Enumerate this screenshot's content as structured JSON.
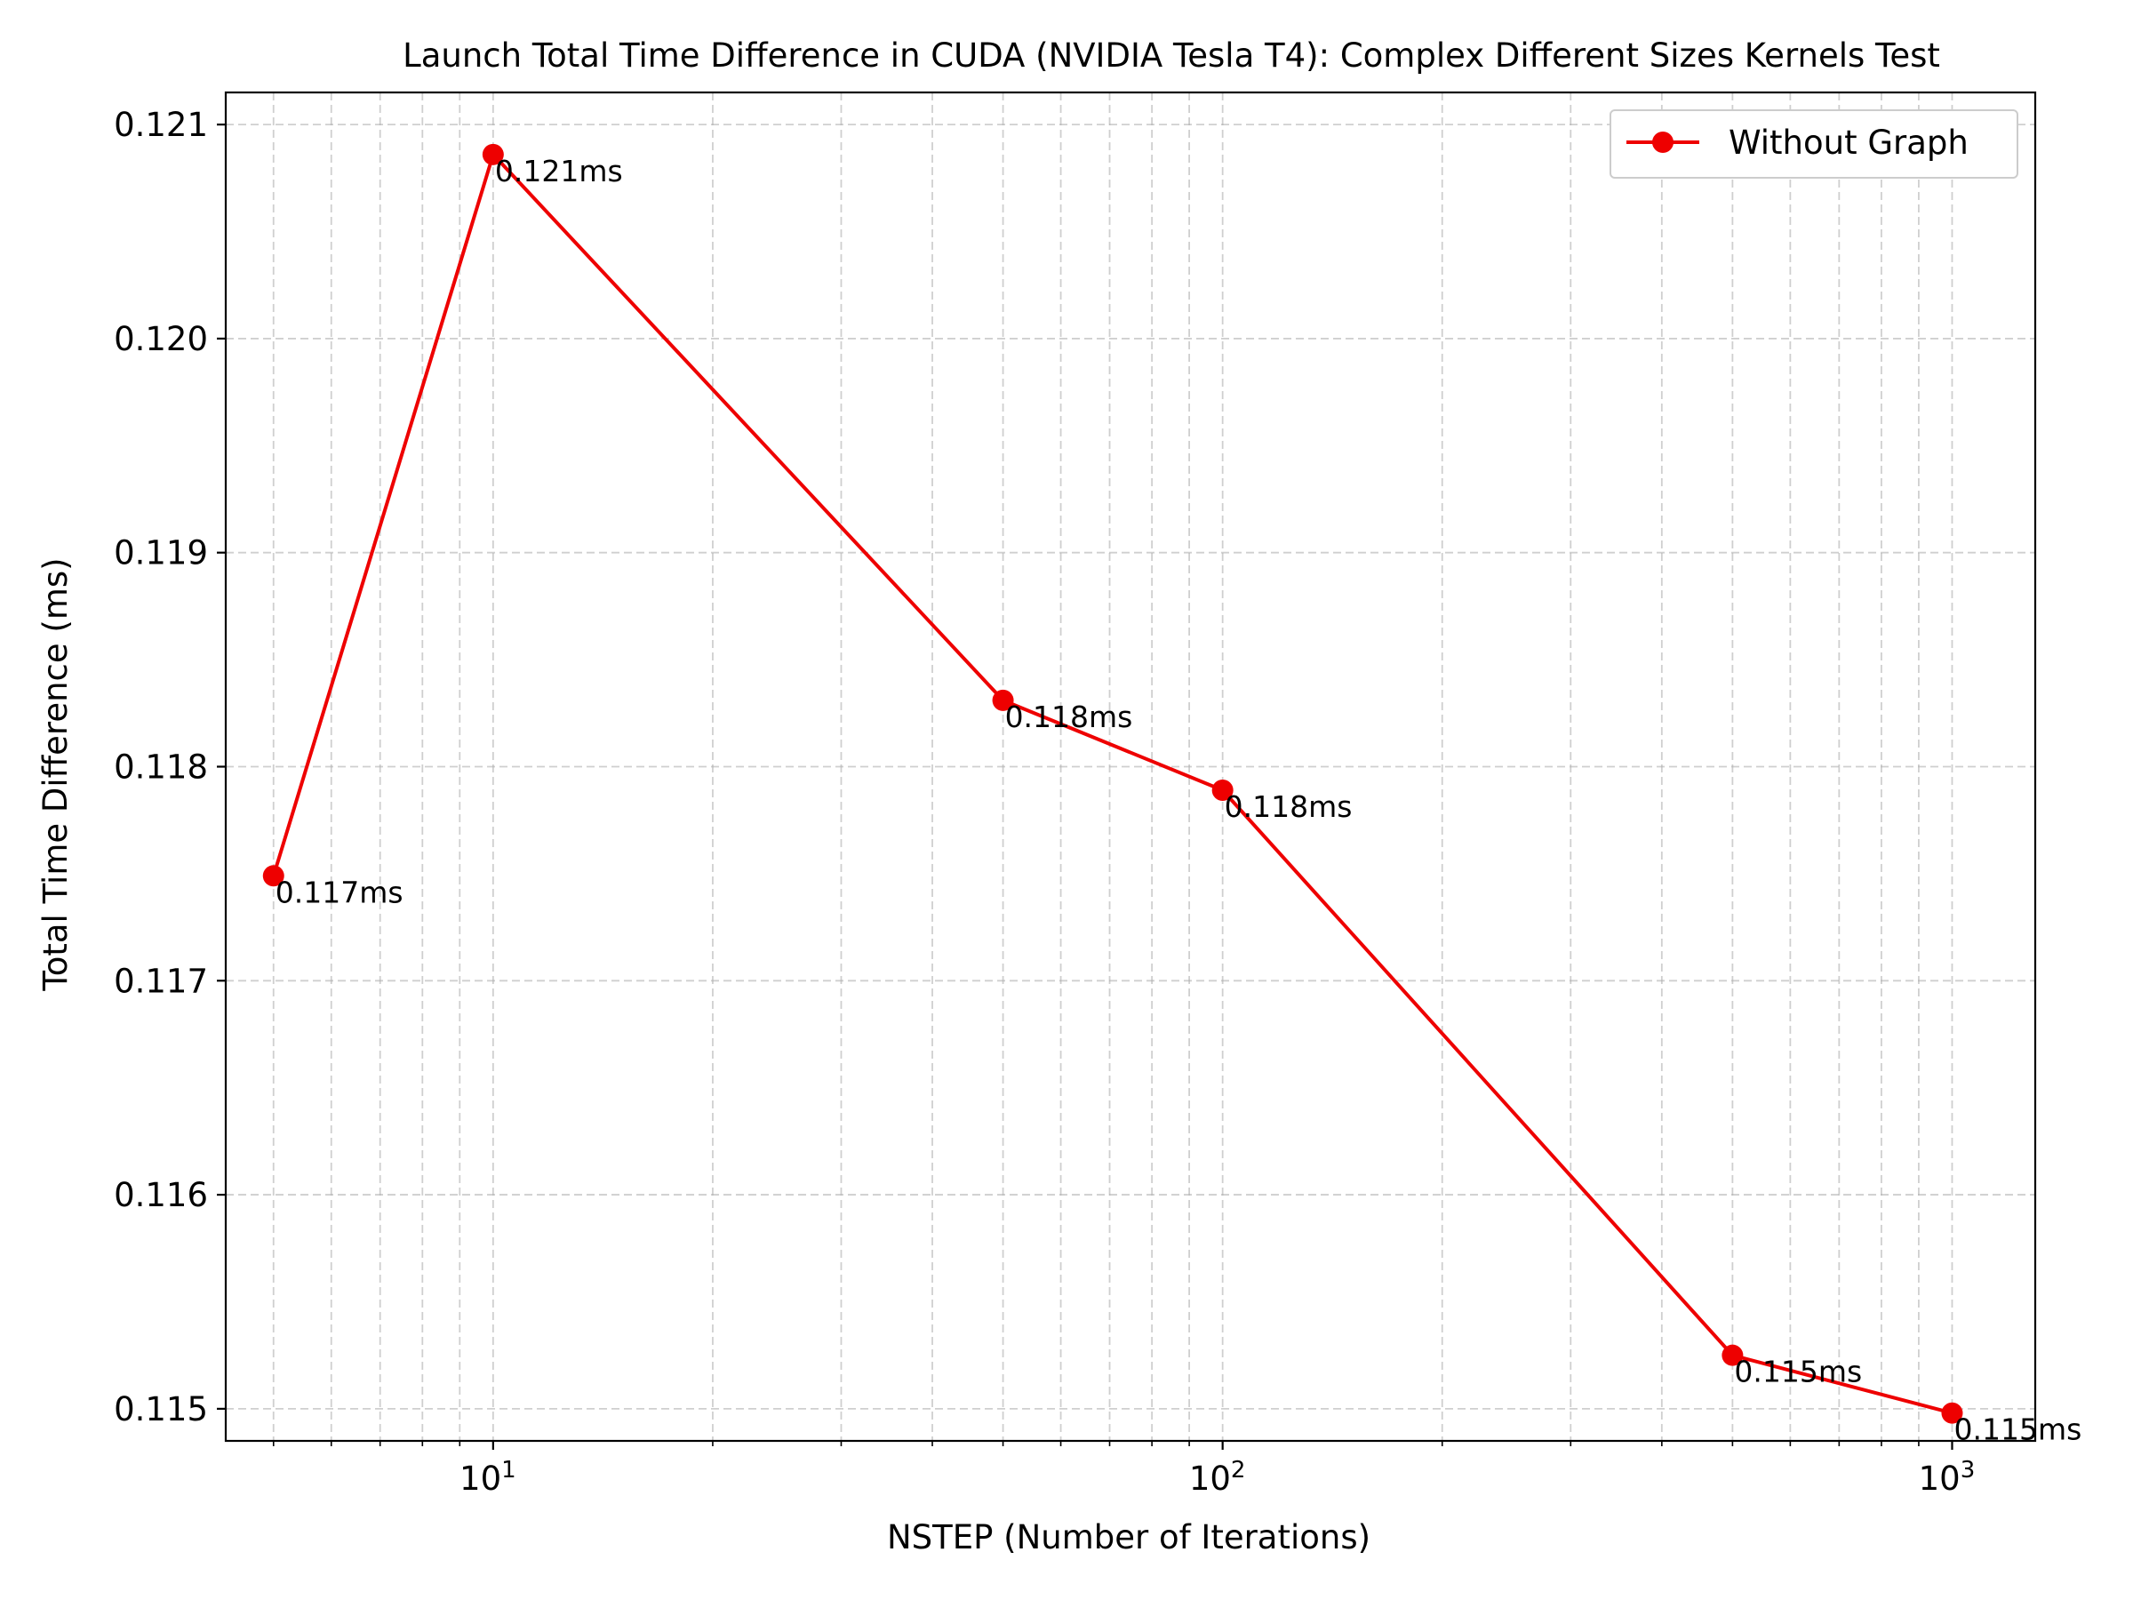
{
  "chart_data": {
    "type": "line",
    "title": "Launch Total Time Difference in CUDA (NVIDIA Tesla T4): Complex Different Sizes Kernels Test",
    "xlabel": "NSTEP (Number of Iterations)",
    "ylabel": "Total Time Difference (ms)",
    "xscale": "log",
    "xlim": [
      4.3,
      1300
    ],
    "ylim": [
      0.11485,
      0.12115
    ],
    "x_ticks": [
      {
        "base": "10",
        "exp": "1",
        "value": 10
      },
      {
        "base": "10",
        "exp": "2",
        "value": 100
      },
      {
        "base": "10",
        "exp": "3",
        "value": 1000
      }
    ],
    "y_ticks": [
      {
        "label": "0.115",
        "value": 0.115
      },
      {
        "label": "0.116",
        "value": 0.116
      },
      {
        "label": "0.117",
        "value": 0.117
      },
      {
        "label": "0.118",
        "value": 0.118
      },
      {
        "label": "0.119",
        "value": 0.119
      },
      {
        "label": "0.120",
        "value": 0.12
      },
      {
        "label": "0.121",
        "value": 0.121
      }
    ],
    "grid": true,
    "legend_position": "top-right",
    "series": [
      {
        "name": "Without Graph",
        "color": "#ee0000",
        "marker": "circle",
        "x": [
          5,
          10,
          50,
          100,
          500,
          1000
        ],
        "y": [
          0.11749,
          0.12086,
          0.11831,
          0.11789,
          0.11525,
          0.11498
        ],
        "data_labels": [
          "0.117ms",
          "0.121ms",
          "0.118ms",
          "0.118ms",
          "0.115ms",
          "0.115ms"
        ]
      }
    ]
  }
}
